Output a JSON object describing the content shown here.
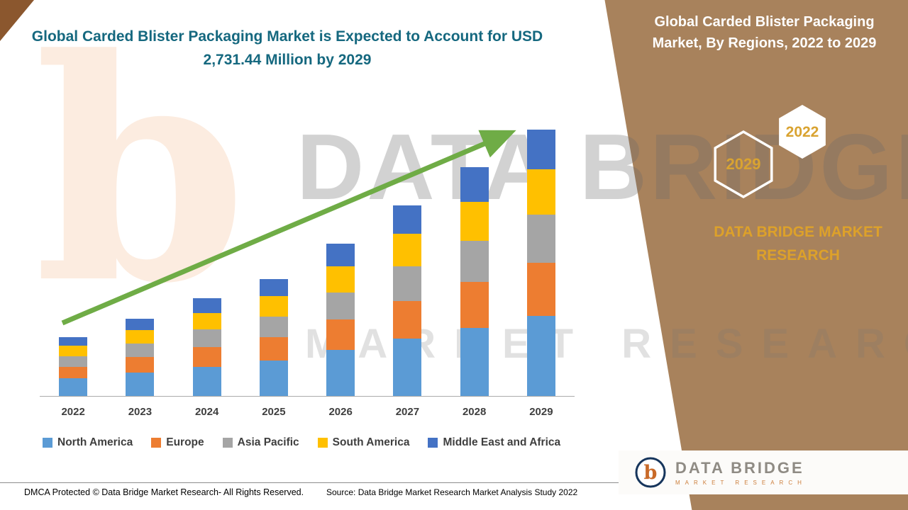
{
  "header": {
    "left_title": "Global Carded Blister Packaging Market is Expected to Account for USD 2,731.44 Million by 2029",
    "right_title": "Global Carded Blister Packaging Market, By Regions, 2022 to 2029"
  },
  "right_panel": {
    "hexagons": [
      {
        "label": "2029"
      },
      {
        "label": "2022"
      }
    ],
    "brand": "DATA BRIDGE MARKET RESEARCH",
    "logo": {
      "name": "DATA BRIDGE",
      "sub": "MARKET RESEARCH"
    }
  },
  "watermark": {
    "b": "b",
    "line1": "DATA BRIDGE",
    "line2": "MARKET RESEARCH"
  },
  "footer": {
    "dmca": "DMCA Protected © Data Bridge Market Research- All Rights Reserved.",
    "source": "Source: Data Bridge Market Research Market Analysis Study 2022"
  },
  "colors": {
    "brown_bg": "#A8825C",
    "accent_gold": "#DDA12A",
    "title_teal": "#15687F",
    "arrow_green": "#6FAC46"
  },
  "chart_data": {
    "type": "bar",
    "stacked": true,
    "title": "Global Carded Blister Packaging Market is Expected to Account for USD 2,731.44 Million by 2029",
    "unit": "USD Million",
    "projected_total_2029_usd_million": 2731.44,
    "categories": [
      "2022",
      "2023",
      "2024",
      "2025",
      "2026",
      "2027",
      "2028",
      "2029"
    ],
    "series": [
      {
        "name": "North America",
        "color": "#5B9BD5",
        "values": [
          180,
          240,
          300,
          360,
          470,
          585,
          700,
          820
        ]
      },
      {
        "name": "Europe",
        "color": "#ED7D31",
        "values": [
          120,
          158,
          200,
          240,
          312,
          390,
          468,
          546
        ]
      },
      {
        "name": "Asia Pacific",
        "color": "#A5A5A5",
        "values": [
          110,
          142,
          180,
          216,
          281,
          351,
          421,
          492
        ]
      },
      {
        "name": "South America",
        "color": "#FFC000",
        "values": [
          105,
          135,
          170,
          204,
          265,
          332,
          398,
          464
        ]
      },
      {
        "name": "Middle East and Africa",
        "color": "#4472C4",
        "values": [
          85,
          115,
          150,
          180,
          232,
          292,
          353,
          409
        ]
      }
    ],
    "ylim": [
      0,
      2800
    ],
    "legend_position": "bottom",
    "grid": false,
    "trend_arrow": true
  }
}
